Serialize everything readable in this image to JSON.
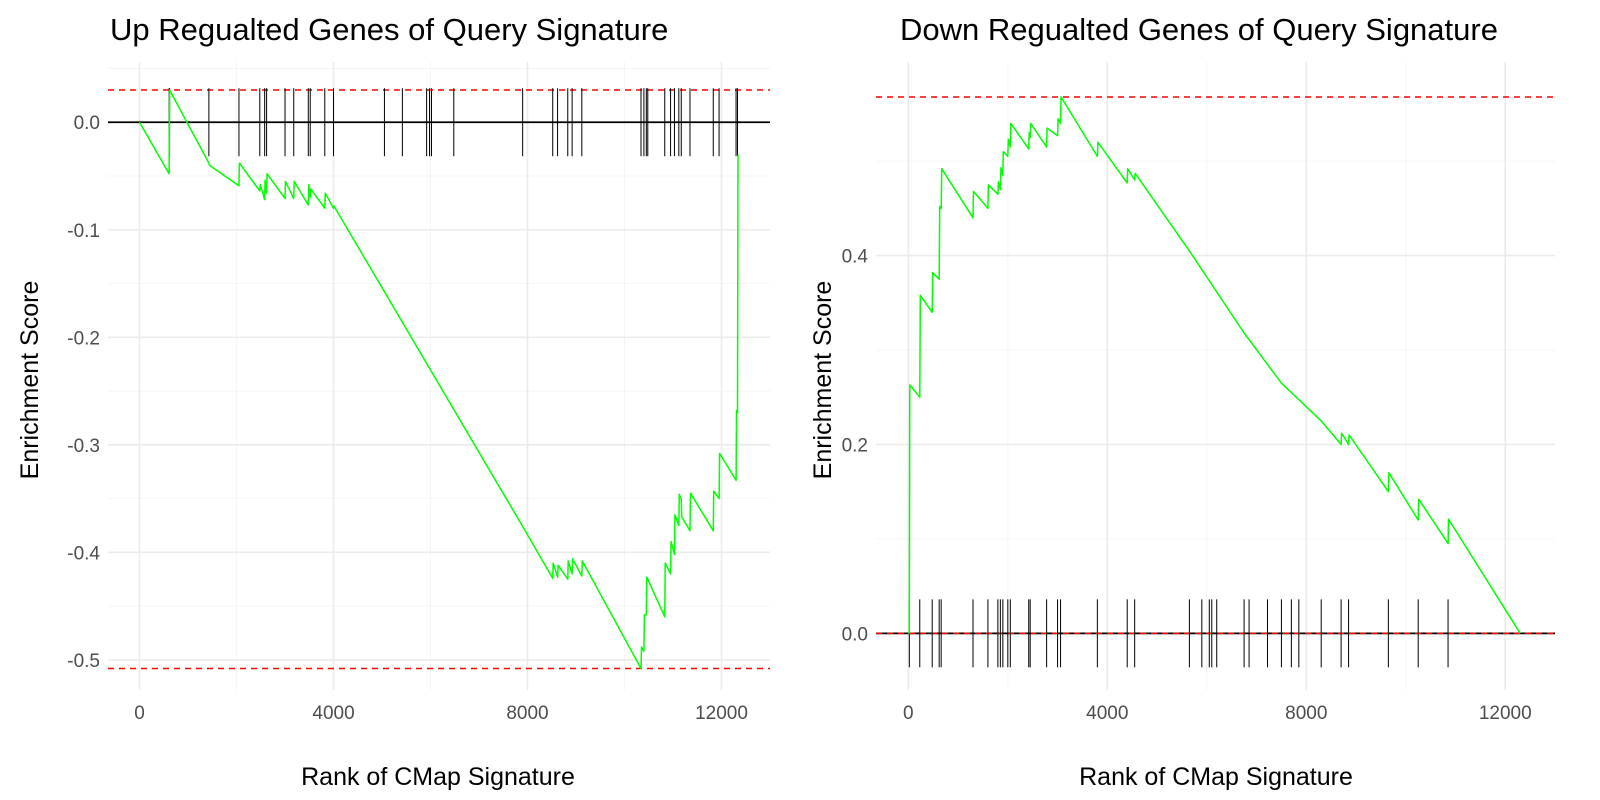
{
  "chart_data": [
    {
      "type": "line",
      "title": "Up Regualted Genes of Query Signature",
      "xlabel": "Rank of CMap Signature",
      "ylabel": "Enrichment Score",
      "xlim": [
        -650,
        13000
      ],
      "ylim": [
        -0.528,
        0.056
      ],
      "x_ticks": [
        0,
        4000,
        8000,
        12000
      ],
      "x_tick_labels": [
        "0",
        "4000",
        "8000",
        "12000"
      ],
      "y_ticks": [
        -0.5,
        -0.4,
        -0.3,
        -0.2,
        -0.1,
        0.0
      ],
      "y_tick_labels": [
        "-0.5",
        "-0.4",
        "-0.3",
        "-0.2",
        "-0.1",
        "0.0"
      ],
      "reference_lines": {
        "max_es": 0.03,
        "min_es": -0.508,
        "zero": 0.0
      },
      "gene_hits": [
        610,
        620,
        1430,
        2050,
        2480,
        2580,
        2620,
        3000,
        3180,
        3480,
        3520,
        3820,
        4000,
        5050,
        5420,
        5920,
        5980,
        6020,
        6480,
        7900,
        8520,
        8620,
        8830,
        8920,
        9120,
        10340,
        10400,
        10450,
        10480,
        10830,
        10950,
        11030,
        11120,
        11170,
        11350,
        11830,
        11950,
        12300,
        12330
      ],
      "series": [
        {
          "color": "#00ff00",
          "x": [
            0,
            610,
            620,
            1430,
            1440,
            2050,
            2060,
            2480,
            2490,
            2580,
            2590,
            2620,
            2630,
            3000,
            3010,
            3180,
            3190,
            3480,
            3490,
            3520,
            3530,
            3820,
            3830,
            4000,
            4010,
            7900,
            8520,
            8530,
            8620,
            8630,
            8830,
            8840,
            8920,
            8930,
            9120,
            9130,
            10340,
            10350,
            10400,
            10410,
            10450,
            10460,
            10830,
            10840,
            10950,
            10960,
            11030,
            11040,
            11120,
            11130,
            11170,
            11180,
            11350,
            11360,
            11830,
            11840,
            11950,
            11960,
            12300,
            12310,
            12330,
            12340
          ],
          "y": [
            0,
            -0.048,
            0.03,
            -0.038,
            -0.04,
            -0.059,
            -0.038,
            -0.064,
            -0.058,
            -0.072,
            -0.054,
            -0.066,
            -0.048,
            -0.071,
            -0.055,
            -0.071,
            -0.055,
            -0.077,
            -0.058,
            -0.07,
            -0.062,
            -0.08,
            -0.066,
            -0.08,
            -0.078,
            -0.376,
            -0.424,
            -0.41,
            -0.423,
            -0.412,
            -0.425,
            -0.408,
            -0.42,
            -0.406,
            -0.422,
            -0.408,
            -0.508,
            -0.488,
            -0.492,
            -0.458,
            -0.458,
            -0.423,
            -0.46,
            -0.41,
            -0.42,
            -0.39,
            -0.402,
            -0.365,
            -0.375,
            -0.346,
            -0.35,
            -0.367,
            -0.38,
            -0.345,
            -0.38,
            -0.343,
            -0.35,
            -0.308,
            -0.333,
            -0.268,
            -0.27,
            -0.03
          ]
        }
      ]
    },
    {
      "type": "line",
      "title": "Down Regualted Genes of Query Signature",
      "xlabel": "Rank of CMap Signature",
      "ylabel": "Enrichment Score",
      "xlim": [
        -650,
        13000
      ],
      "ylim": [
        -0.06,
        0.605
      ],
      "x_ticks": [
        0,
        4000,
        8000,
        12000
      ],
      "x_tick_labels": [
        "0",
        "4000",
        "8000",
        "12000"
      ],
      "y_ticks": [
        0.0,
        0.2,
        0.4
      ],
      "y_tick_labels": [
        "0.0",
        "0.2",
        "0.4"
      ],
      "reference_lines": {
        "max_es": 0.568,
        "min_es": 0.0,
        "zero": 0.0
      },
      "gene_hits": [
        20,
        230,
        480,
        620,
        660,
        1300,
        1600,
        1800,
        1850,
        1900,
        2000,
        2050,
        2420,
        2450,
        2780,
        3000,
        3060,
        3800,
        4400,
        4550,
        5650,
        5900,
        6050,
        6100,
        6200,
        6750,
        6850,
        7220,
        7500,
        7700,
        7850,
        8300,
        8700,
        8850,
        9650,
        10250,
        10850
      ],
      "series": [
        {
          "color": "#00ff00",
          "x": [
            0,
            20,
            30,
            230,
            240,
            480,
            490,
            620,
            630,
            660,
            670,
            1300,
            1310,
            1600,
            1610,
            1800,
            1810,
            1850,
            1860,
            1900,
            1910,
            2000,
            2010,
            2050,
            2060,
            2420,
            2430,
            2450,
            2460,
            2780,
            2790,
            3000,
            3010,
            3060,
            3070,
            3800,
            3810,
            4400,
            4410,
            4550,
            4560,
            5650,
            6750,
            7500,
            8300,
            8700,
            8710,
            8850,
            8860,
            9650,
            9660,
            10250,
            10260,
            10850,
            10860,
            12300
          ],
          "y": [
            0,
            0.0,
            0.263,
            0.25,
            0.358,
            0.34,
            0.382,
            0.375,
            0.452,
            0.45,
            0.492,
            0.44,
            0.468,
            0.45,
            0.475,
            0.465,
            0.478,
            0.47,
            0.493,
            0.485,
            0.51,
            0.505,
            0.523,
            0.515,
            0.54,
            0.513,
            0.53,
            0.525,
            0.54,
            0.515,
            0.535,
            0.527,
            0.545,
            0.54,
            0.568,
            0.505,
            0.52,
            0.477,
            0.492,
            0.48,
            0.487,
            0.405,
            0.318,
            0.265,
            0.225,
            0.2,
            0.212,
            0.2,
            0.21,
            0.15,
            0.17,
            0.12,
            0.142,
            0.095,
            0.121,
            0.0
          ]
        }
      ]
    }
  ]
}
